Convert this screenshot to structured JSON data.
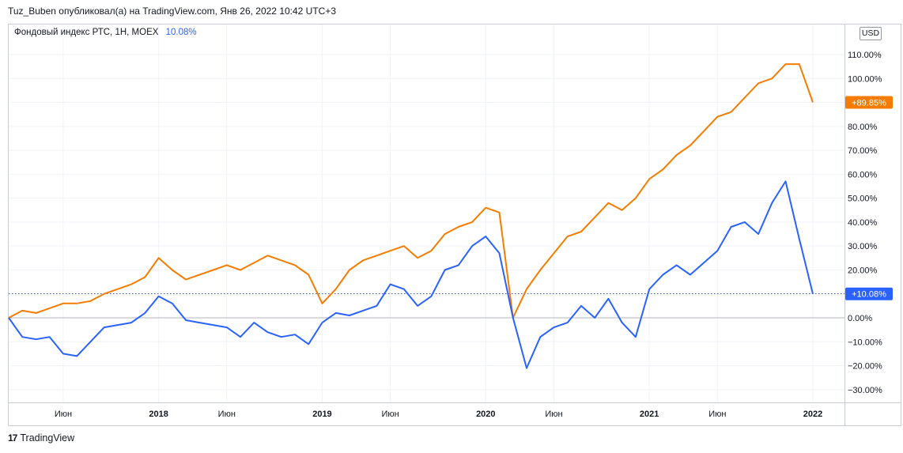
{
  "header": {
    "credit": "Tuz_Buben опубликовал(а) на TradingView.com, Янв 26, 2022 10:42 UTC+3"
  },
  "legend": {
    "symbol": "Фондовый индекс РТС, 1Н, MOEX",
    "value": "10.08%"
  },
  "currency_button": "USD",
  "footer": {
    "brand": "TradingView",
    "logo_mark": "17"
  },
  "colors": {
    "blue": "#2962ff",
    "orange": "#f57c00",
    "grid": "#f0f3fa",
    "zero": "#b2b5be"
  },
  "chart_data": {
    "type": "line",
    "y_unit": "%",
    "ylim": [
      -35,
      115
    ],
    "y_ticks": [
      "110.00%",
      "100.00%",
      "90.00%",
      "80.00%",
      "70.00%",
      "60.00%",
      "50.00%",
      "40.00%",
      "30.00%",
      "20.00%",
      "10.00%",
      "0.00%",
      "−10.00%",
      "−20.00%",
      "−30.00%"
    ],
    "y_tick_values": [
      110,
      100,
      90,
      80,
      70,
      60,
      50,
      40,
      30,
      20,
      10,
      0,
      -10,
      -20,
      -30
    ],
    "x_ticks": [
      {
        "label": "Июн",
        "x": "2017-06",
        "year": false
      },
      {
        "label": "2018",
        "x": "2018-01",
        "year": true
      },
      {
        "label": "Июн",
        "x": "2018-06",
        "year": false
      },
      {
        "label": "2019",
        "x": "2019-01",
        "year": true
      },
      {
        "label": "Июн",
        "x": "2019-06",
        "year": false
      },
      {
        "label": "2020",
        "x": "2020-01",
        "year": true
      },
      {
        "label": "Июн",
        "x": "2020-06",
        "year": false
      },
      {
        "label": "2021",
        "x": "2021-01",
        "year": true
      },
      {
        "label": "Июн",
        "x": "2021-06",
        "year": false
      },
      {
        "label": "2022",
        "x": "2022-01",
        "year": true
      }
    ],
    "x": [
      "2017-02",
      "2017-03",
      "2017-04",
      "2017-05",
      "2017-06",
      "2017-07",
      "2017-08",
      "2017-09",
      "2017-10",
      "2017-11",
      "2017-12",
      "2018-01",
      "2018-02",
      "2018-03",
      "2018-04",
      "2018-05",
      "2018-06",
      "2018-07",
      "2018-08",
      "2018-09",
      "2018-10",
      "2018-11",
      "2018-12",
      "2019-01",
      "2019-02",
      "2019-03",
      "2019-04",
      "2019-05",
      "2019-06",
      "2019-07",
      "2019-08",
      "2019-09",
      "2019-10",
      "2019-11",
      "2019-12",
      "2020-01",
      "2020-02",
      "2020-03",
      "2020-04",
      "2020-05",
      "2020-06",
      "2020-07",
      "2020-08",
      "2020-09",
      "2020-10",
      "2020-11",
      "2020-12",
      "2021-01",
      "2021-02",
      "2021-03",
      "2021-04",
      "2021-05",
      "2021-06",
      "2021-07",
      "2021-08",
      "2021-09",
      "2021-10",
      "2021-11",
      "2021-12",
      "2022-01"
    ],
    "series": [
      {
        "name": "Фондовый индекс РТС, 1Н, MOEX",
        "color": "#2962ff",
        "last_label": "+10.08%",
        "values": [
          0,
          -8,
          -9,
          -8,
          -15,
          -16,
          -10,
          -4,
          -3,
          -2,
          2,
          9,
          6,
          -1,
          -2,
          -3,
          -4,
          -8,
          -2,
          -6,
          -8,
          -7,
          -11,
          -2,
          2,
          1,
          3,
          5,
          14,
          12,
          5,
          9,
          20,
          22,
          30,
          34,
          27,
          0,
          -21,
          -8,
          -4,
          -2,
          5,
          0,
          8,
          -2,
          -8,
          12,
          18,
          22,
          18,
          23,
          28,
          38,
          40,
          35,
          48,
          57,
          33,
          10
        ]
      },
      {
        "name": "",
        "color": "#f57c00",
        "last_label": "+89.85%",
        "values": [
          0,
          3,
          2,
          4,
          6,
          6,
          7,
          10,
          12,
          14,
          17,
          25,
          20,
          16,
          18,
          20,
          22,
          20,
          23,
          26,
          24,
          22,
          18,
          6,
          12,
          20,
          24,
          26,
          28,
          30,
          25,
          28,
          35,
          38,
          40,
          46,
          44,
          0,
          12,
          20,
          27,
          34,
          36,
          42,
          48,
          45,
          50,
          58,
          62,
          68,
          72,
          78,
          84,
          86,
          92,
          98,
          100,
          106,
          106,
          90
        ]
      }
    ],
    "last_value_line": 10.08,
    "grid": true,
    "legend": "top-left"
  }
}
